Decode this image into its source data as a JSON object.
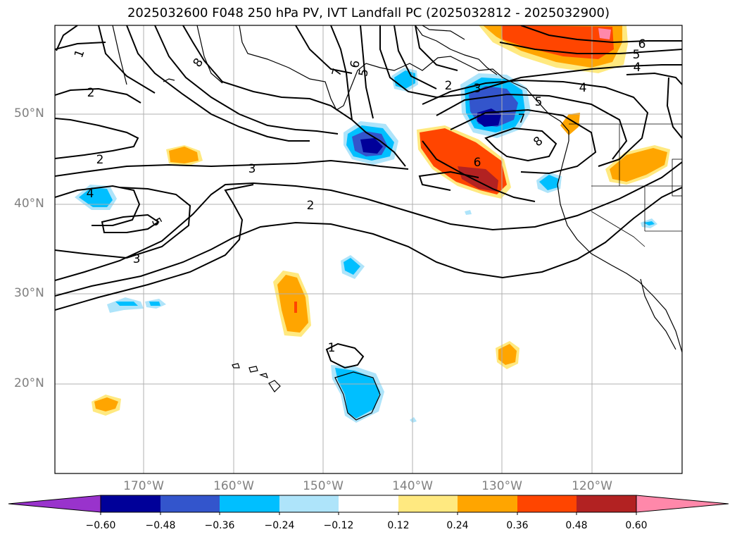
{
  "title": "2025032600 F048 250 hPa PV, IVT Landfall PC (2025032812 - 2025032900)",
  "latitude_labels": [
    "50°N",
    "40°N",
    "30°N",
    "20°N"
  ],
  "longitude_labels": [
    "170°W",
    "160°W",
    "150°W",
    "140°W",
    "130°W",
    "120°W"
  ],
  "contour_labels": [
    "1",
    "2",
    "2",
    "2",
    "2",
    "3",
    "3",
    "4",
    "4",
    "4",
    "5",
    "5",
    "5",
    "5",
    "6",
    "6",
    "6",
    "7",
    "7",
    "8",
    "8",
    "1"
  ],
  "colorbar": {
    "colors": [
      "#9933cc",
      "#000099",
      "#3355cc",
      "#00bfff",
      "#aee4fa",
      "#ffffff",
      "#ffe980",
      "#ffa500",
      "#ff4500",
      "#b22222",
      "#ff88aa"
    ],
    "tick_labels": [
      "−0.60",
      "−0.48",
      "−0.36",
      "−0.24",
      "−0.12",
      "0.12",
      "0.24",
      "0.36",
      "0.48",
      "0.60"
    ]
  }
}
